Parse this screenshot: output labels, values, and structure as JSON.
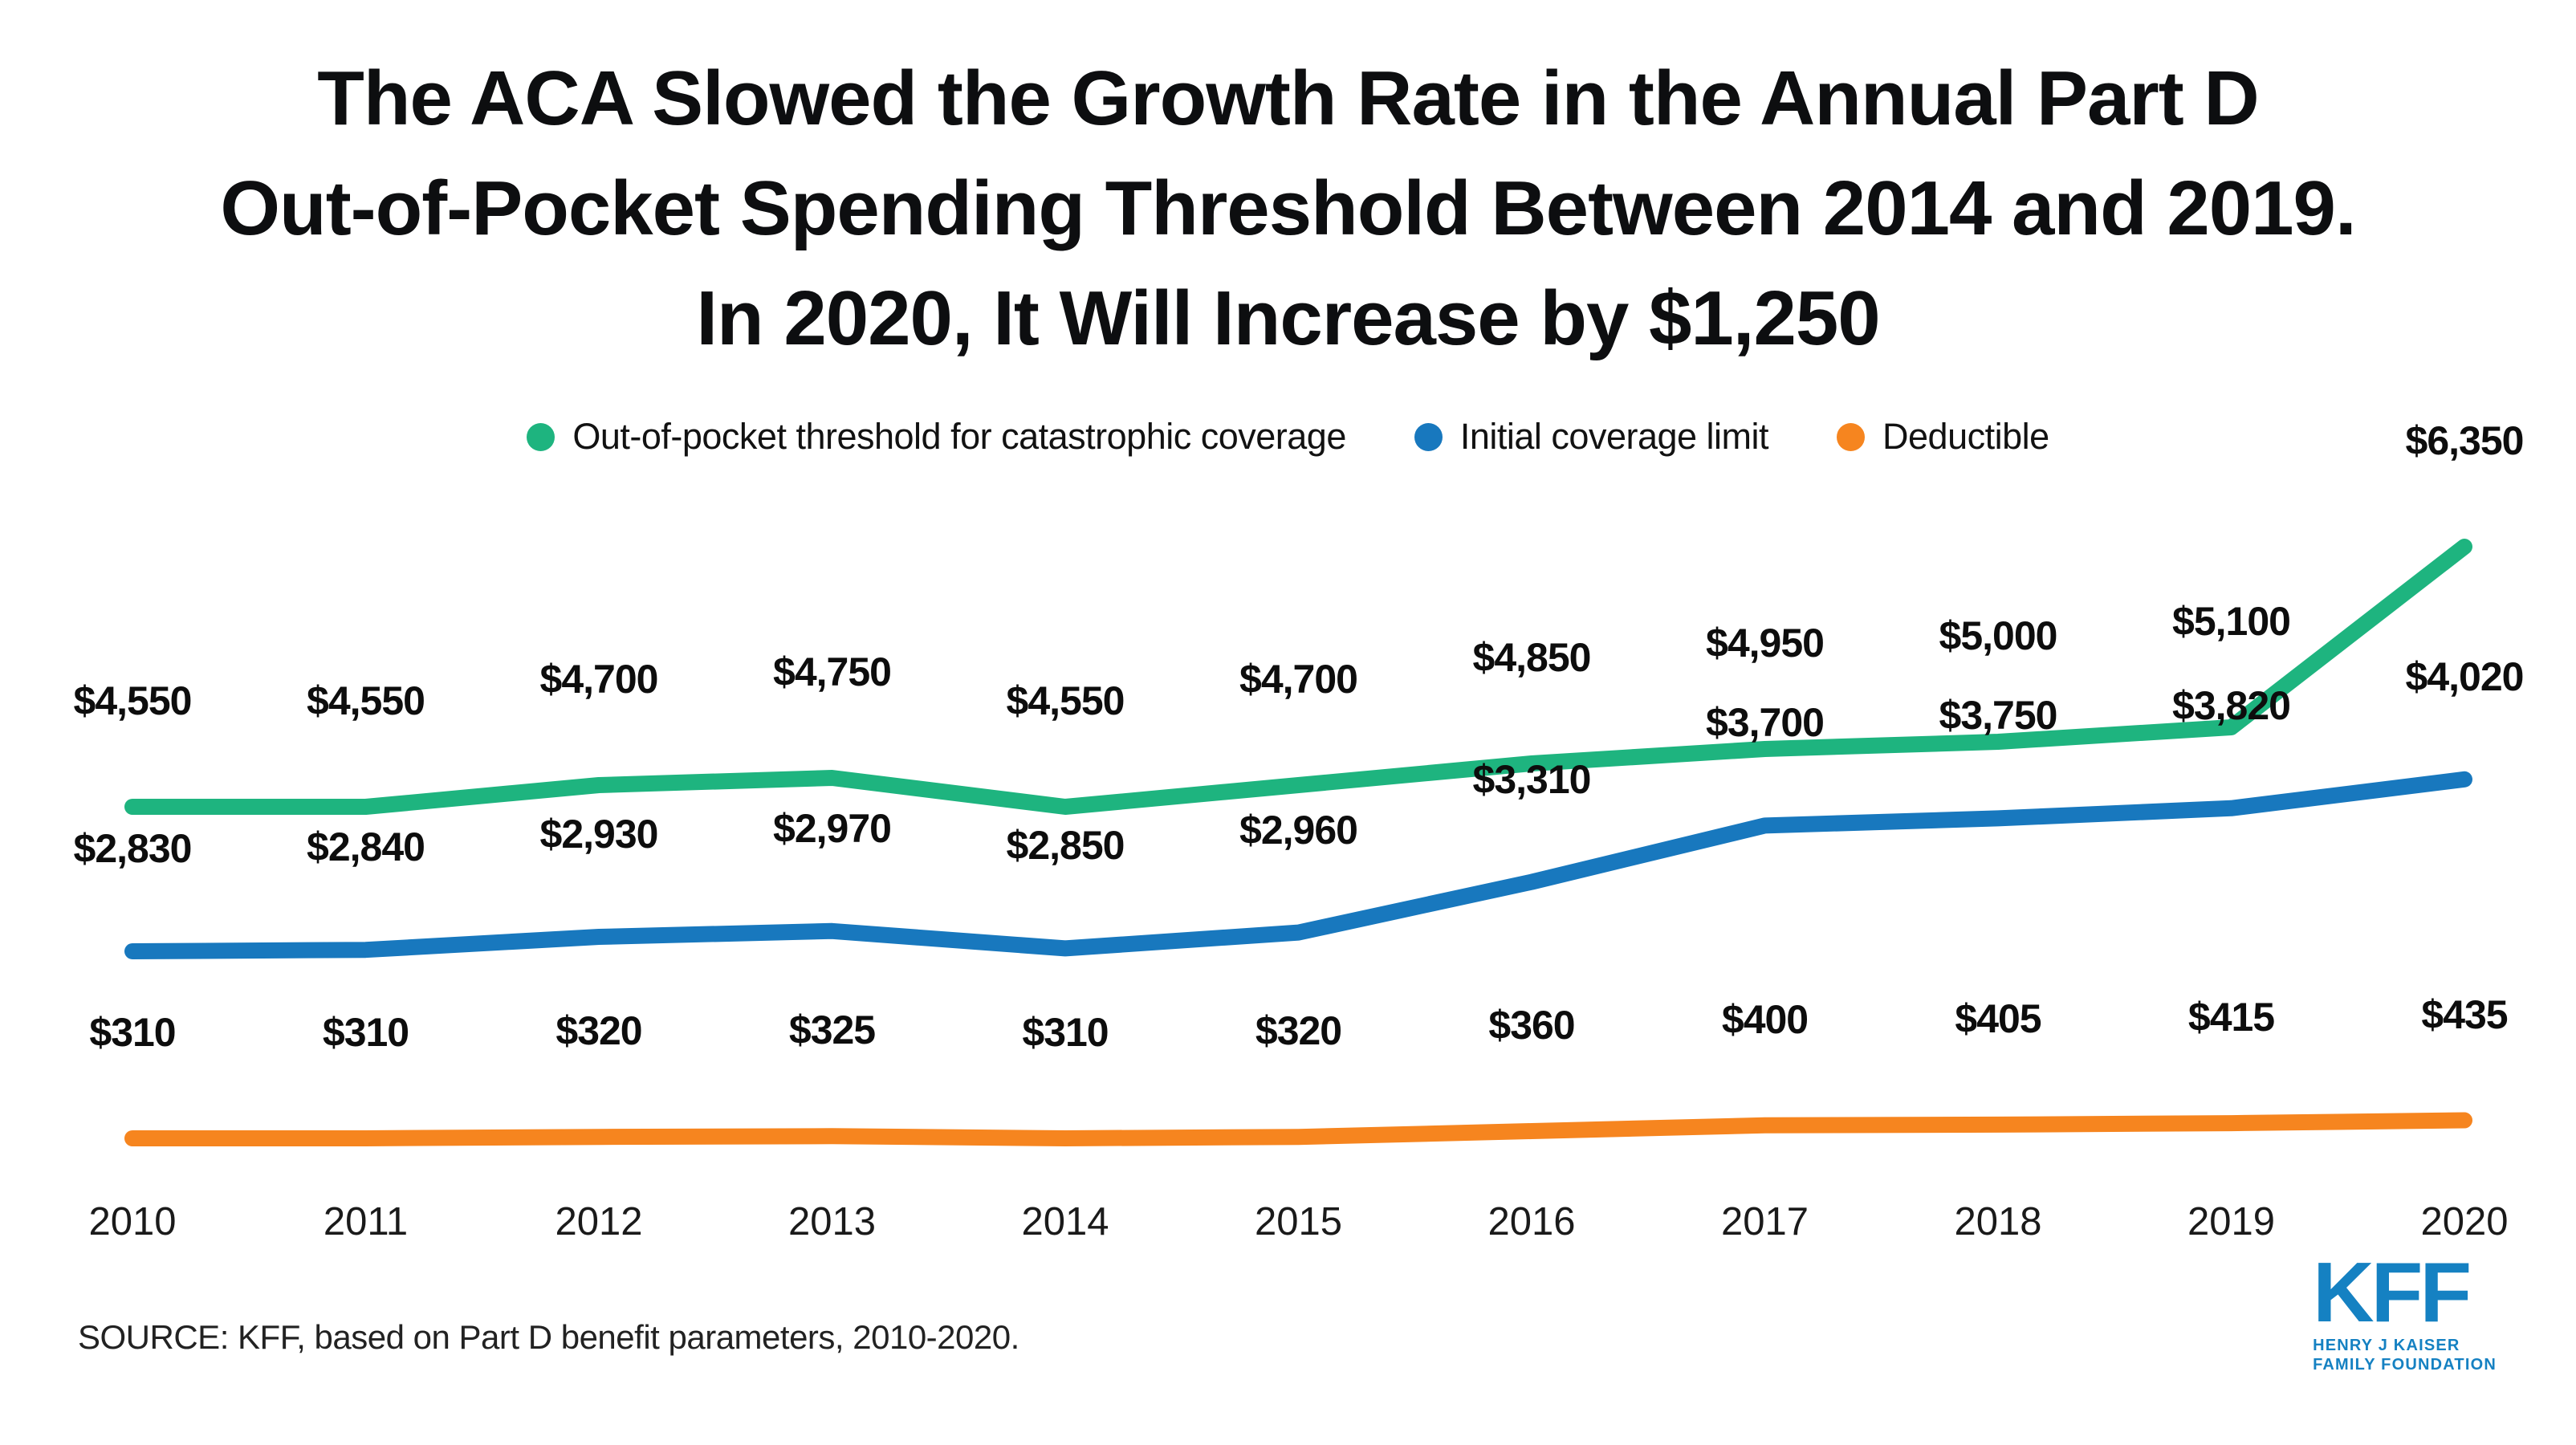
{
  "title": {
    "lines": [
      "The ACA Slowed the Growth Rate in the Annual Part D",
      "Out-of-Pocket Spending Threshold Between 2014 and 2019.",
      "In 2020, It Will Increase by $1,250"
    ]
  },
  "chart_data": {
    "type": "line",
    "title": "The ACA Slowed the Growth Rate in the Annual Part D Out-of-Pocket Spending Threshold Between 2014 and 2019. In 2020, It Will Increase by $1,250",
    "xlabel": "",
    "ylabel": "",
    "x": [
      2010,
      2011,
      2012,
      2013,
      2014,
      2015,
      2016,
      2017,
      2018,
      2019,
      2020
    ],
    "series": [
      {
        "name": "Out-of-pocket threshold for catastrophic coverage",
        "color": "#1EB47F",
        "values": [
          4550,
          4550,
          4700,
          4750,
          4550,
          4700,
          4850,
          4950,
          5000,
          5100,
          6350
        ]
      },
      {
        "name": "Initial coverage limit",
        "color": "#1878BE",
        "values": [
          2830,
          2840,
          2930,
          2970,
          2850,
          2960,
          3310,
          3700,
          3750,
          3820,
          4020
        ]
      },
      {
        "name": "Deductible",
        "color": "#F6851F",
        "values": [
          310,
          310,
          320,
          325,
          310,
          320,
          360,
          400,
          405,
          415,
          435
        ]
      }
    ],
    "data_label_format": "$#,###",
    "grid": false,
    "y_axis_shown": false,
    "legend_position": "top"
  },
  "source": {
    "text": "SOURCE: KFF, based on Part D benefit parameters, 2010-2020."
  },
  "logo": {
    "text": "KFF",
    "line1": "HENRY J KAISER",
    "line2": "FAMILY FOUNDATION",
    "color": "#1581C2"
  }
}
